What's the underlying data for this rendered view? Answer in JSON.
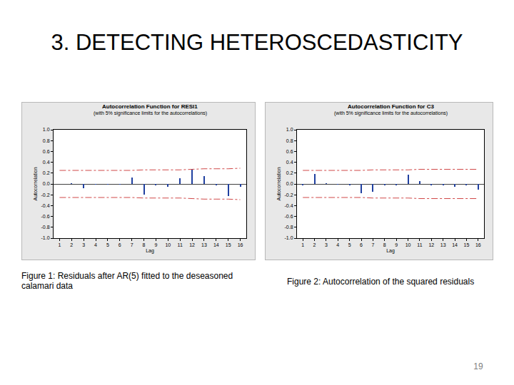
{
  "slide_title": "3. DETECTING HETEROSCEDASTICITY",
  "page_number": "19",
  "chart_data": [
    {
      "type": "bar",
      "title": "Autocorrelation Function for RESI1",
      "subtitle": "(with 5% significance limits for the autocorrelations)",
      "xlabel": "Lag",
      "ylabel": "Autocorrelation",
      "caption": "Figure 1: Residuals after AR(5) fitted to the deseasoned calamari data",
      "x": [
        1,
        2,
        3,
        4,
        5,
        6,
        7,
        8,
        9,
        10,
        11,
        12,
        13,
        14,
        15,
        16
      ],
      "series": [
        {
          "type": "bar",
          "color": "#2040a0",
          "values": [
            0.0,
            0.01,
            -0.08,
            -0.01,
            -0.01,
            -0.01,
            0.12,
            -0.2,
            -0.03,
            -0.05,
            0.1,
            0.27,
            0.15,
            -0.02,
            -0.22,
            -0.05
          ]
        },
        {
          "type": "line",
          "color": "#d04848",
          "line_style": "dashdot",
          "values": [
            0.25,
            0.25,
            0.25,
            0.25,
            0.25,
            0.25,
            0.25,
            0.26,
            0.26,
            0.26,
            0.26,
            0.27,
            0.28,
            0.28,
            0.28,
            0.29
          ]
        },
        {
          "type": "line",
          "color": "#d04848",
          "line_style": "dashdot",
          "values": [
            -0.25,
            -0.25,
            -0.25,
            -0.25,
            -0.25,
            -0.25,
            -0.25,
            -0.26,
            -0.26,
            -0.26,
            -0.26,
            -0.27,
            -0.28,
            -0.28,
            -0.28,
            -0.29
          ]
        }
      ],
      "xlim": [
        0.5,
        16.5
      ],
      "xticks": [
        1,
        2,
        3,
        4,
        5,
        6,
        7,
        8,
        9,
        10,
        11,
        12,
        13,
        14,
        15,
        16
      ],
      "ylim": [
        -1,
        1
      ],
      "yticks": [
        {
          "value": 1,
          "label": "1.0"
        },
        {
          "value": 0.8,
          "label": "0.8"
        },
        {
          "value": 0.6,
          "label": "0.6"
        },
        {
          "value": 0.4,
          "label": "0.4"
        },
        {
          "value": 0.2,
          "label": "0.2"
        },
        {
          "value": 0,
          "label": "0.0"
        },
        {
          "value": -0.2,
          "label": "-0.2"
        },
        {
          "value": -0.4,
          "label": "-0.4"
        },
        {
          "value": -0.6,
          "label": "-0.6"
        },
        {
          "value": -0.8,
          "label": "-0.8"
        },
        {
          "value": -1,
          "label": "-1.0"
        }
      ],
      "grid": false
    },
    {
      "type": "bar",
      "title": "Autocorrelation Function for C3",
      "subtitle": "(with 5% significance limits for the autocorrelations)",
      "xlabel": "Lag",
      "ylabel": "Autocorrelation",
      "caption": "Figure 2: Autocorrelation of the squared residuals",
      "x": [
        1,
        2,
        3,
        4,
        5,
        6,
        7,
        8,
        9,
        10,
        11,
        12,
        13,
        14,
        15,
        16
      ],
      "series": [
        {
          "type": "bar",
          "color": "#2040a0",
          "values": [
            -0.02,
            0.18,
            0.01,
            -0.01,
            -0.02,
            -0.17,
            -0.15,
            -0.02,
            -0.03,
            0.17,
            0.05,
            -0.02,
            -0.03,
            -0.05,
            -0.03,
            -0.1
          ]
        },
        {
          "type": "line",
          "color": "#d04848",
          "line_style": "dashdot",
          "values": [
            0.25,
            0.25,
            0.25,
            0.25,
            0.25,
            0.25,
            0.26,
            0.26,
            0.26,
            0.26,
            0.27,
            0.27,
            0.27,
            0.27,
            0.27,
            0.27
          ]
        },
        {
          "type": "line",
          "color": "#d04848",
          "line_style": "dashdot",
          "values": [
            -0.25,
            -0.25,
            -0.25,
            -0.25,
            -0.25,
            -0.25,
            -0.26,
            -0.26,
            -0.26,
            -0.26,
            -0.27,
            -0.27,
            -0.27,
            -0.27,
            -0.27,
            -0.27
          ]
        }
      ],
      "xlim": [
        0.5,
        16.5
      ],
      "xticks": [
        1,
        2,
        3,
        4,
        5,
        6,
        7,
        8,
        9,
        10,
        11,
        12,
        13,
        14,
        15,
        16
      ],
      "ylim": [
        -1,
        1
      ],
      "yticks": [
        {
          "value": 1,
          "label": "1.0"
        },
        {
          "value": 0.8,
          "label": "0.8"
        },
        {
          "value": 0.6,
          "label": "0.6"
        },
        {
          "value": 0.4,
          "label": "0.4"
        },
        {
          "value": 0.2,
          "label": "0.2"
        },
        {
          "value": 0,
          "label": "0.0"
        },
        {
          "value": -0.2,
          "label": "-0.2"
        },
        {
          "value": -0.4,
          "label": "-0.4"
        },
        {
          "value": -0.6,
          "label": "-0.6"
        },
        {
          "value": -0.8,
          "label": "-0.8"
        },
        {
          "value": -1,
          "label": "-1.0"
        }
      ],
      "grid": false
    }
  ]
}
